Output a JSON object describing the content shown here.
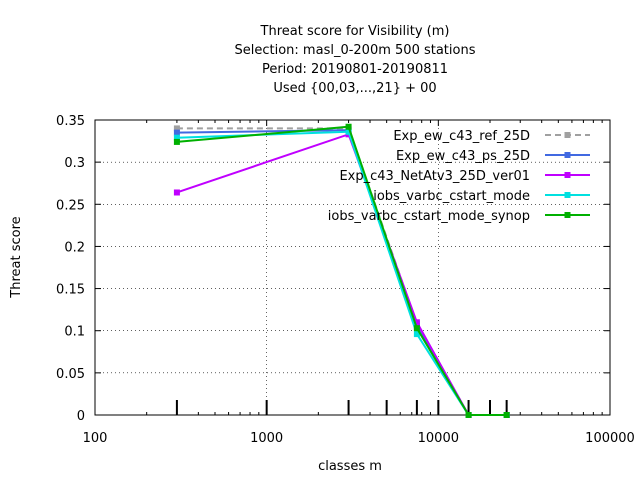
{
  "chart_data": {
    "type": "line",
    "title_lines": [
      "Threat score  for Visibility (m)",
      "Selection: masl_0-200m    500 stations",
      "Period: 20190801-20190811",
      "Used {00,03,...,21} + 00"
    ],
    "xlabel": "classes m",
    "ylabel": "Threat score",
    "x_scale": "log",
    "xlim": [
      100,
      100000
    ],
    "ylim": [
      0,
      0.35
    ],
    "x_ticks": [
      100,
      1000,
      10000,
      100000
    ],
    "x_tick_labels": [
      "100",
      "1000",
      "10000",
      "100000"
    ],
    "y_ticks": [
      0,
      0.05,
      0.1,
      0.15,
      0.2,
      0.25,
      0.3,
      0.35
    ],
    "y_tick_labels": [
      "0",
      "0.05",
      "0.1",
      "0.15",
      "0.2",
      "0.25",
      "0.3",
      "0.35"
    ],
    "grid": true,
    "legend_position": "top-right",
    "class_marks": [
      300,
      1000,
      3000,
      5000,
      7500,
      10000,
      15000,
      20000,
      25000
    ],
    "series": [
      {
        "name": "Exp_ew_c43_ref_25D",
        "color": "#a0a0a0",
        "dashed": true,
        "x": [
          300,
          3000,
          7500,
          15000,
          25000
        ],
        "y": [
          0.34,
          0.34,
          0.108,
          0.0,
          0.0
        ]
      },
      {
        "name": "Exp_ew_c43_ps_25D",
        "color": "#4169e1",
        "dashed": false,
        "x": [
          300,
          3000,
          7500,
          15000,
          25000
        ],
        "y": [
          0.335,
          0.338,
          0.105,
          0.0,
          0.0
        ]
      },
      {
        "name": "Exp_c43_NetAtv3_25D_ver01",
        "color": "#c000ff",
        "dashed": false,
        "x": [
          300,
          3000,
          7500,
          15000,
          25000
        ],
        "y": [
          0.264,
          0.333,
          0.11,
          0.0,
          0.0
        ]
      },
      {
        "name": "iobs_varbc_cstart_mode",
        "color": "#00e0e0",
        "dashed": false,
        "x": [
          300,
          3000,
          7500,
          15000,
          25000
        ],
        "y": [
          0.329,
          0.336,
          0.096,
          0.0,
          0.0
        ]
      },
      {
        "name": "iobs_varbc_cstart_mode_synop",
        "color": "#00b000",
        "dashed": false,
        "x": [
          300,
          3000,
          7500,
          15000,
          25000
        ],
        "y": [
          0.324,
          0.342,
          0.103,
          0.0,
          0.0
        ]
      }
    ]
  }
}
